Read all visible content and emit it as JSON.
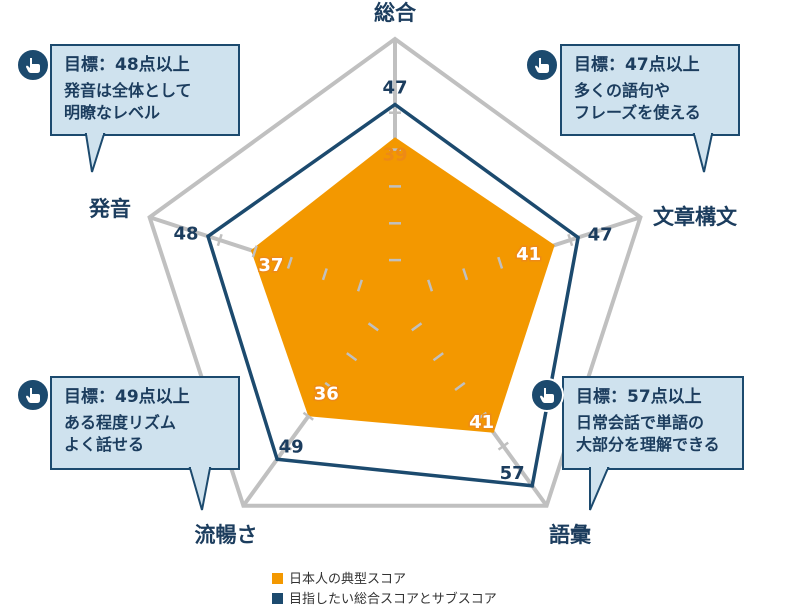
{
  "chart_data": {
    "type": "radar",
    "axes": [
      "総合",
      "文章構文",
      "語彙",
      "流暢さ",
      "発音"
    ],
    "series": [
      {
        "name": "日本人の典型スコア",
        "values": [
          39,
          41,
          41,
          36,
          37
        ],
        "color": "#f39800"
      },
      {
        "name": "目指したい総合スコアとサブスコア",
        "values": [
          47,
          47,
          57,
          49,
          48
        ],
        "color": "#1c4a6e"
      }
    ],
    "grid_color": "#c0c0c0"
  },
  "callouts": [
    {
      "goal": "目標：48点以上",
      "line1": "発音は全体として",
      "line2": "明瞭なレベル"
    },
    {
      "goal": "目標：47点以上",
      "line1": "多くの語句や",
      "line2": "フレーズを使える"
    },
    {
      "goal": "目標：49点以上",
      "line1": "ある程度リズム",
      "line2": "よく話せる"
    },
    {
      "goal": "目標：57点以上",
      "line1": "日常会話で単語の",
      "line2": "大部分を理解できる"
    }
  ],
  "legend": [
    {
      "label": "日本人の典型スコア",
      "color": "#f39800"
    },
    {
      "label": "目指したい総合スコアとサブスコア",
      "color": "#1c4a6e"
    }
  ],
  "icons": {
    "badge": "pointing-hand-icon"
  }
}
